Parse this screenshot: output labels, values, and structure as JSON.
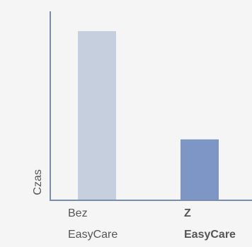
{
  "chart_data": {
    "type": "bar",
    "ylabel": "Czas",
    "xlabel": "",
    "title": "",
    "grid": false,
    "legend": "none",
    "ylim": [
      0,
      100
    ],
    "categories": [
      [
        "Bez",
        "EasyCare"
      ],
      [
        "Z",
        "EasyCare"
      ]
    ],
    "category_bold": [
      false,
      true
    ],
    "values": [
      100,
      36
    ],
    "colors": [
      "#c5cfdd",
      "#7e96c5"
    ],
    "axis_color": "#7b8da8",
    "label_color": "#555555"
  }
}
